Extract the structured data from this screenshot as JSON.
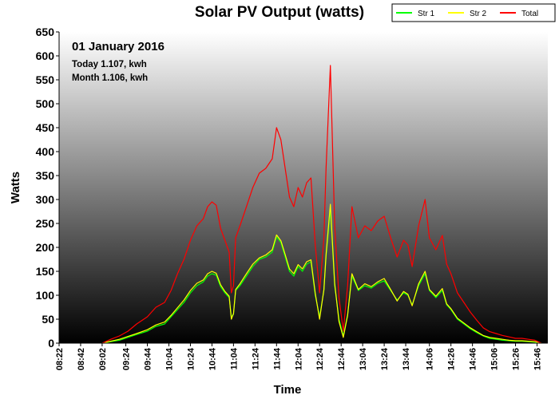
{
  "chart_data": {
    "type": "line",
    "title": "Solar PV Output (watts)",
    "xlabel": "Time",
    "ylabel": "Watts",
    "ylim": [
      0,
      650
    ],
    "yticks": [
      "0",
      "50",
      "100",
      "150",
      "200",
      "250",
      "300",
      "350",
      "400",
      "450",
      "500",
      "550",
      "600",
      "650"
    ],
    "xlim": [
      "08:22",
      "15:56"
    ],
    "xticks": [
      "08:22",
      "08:42",
      "09:02",
      "09:24",
      "09:44",
      "10:04",
      "10:24",
      "10:44",
      "11:04",
      "11:24",
      "11:44",
      "12:04",
      "12:24",
      "12:44",
      "13:04",
      "13:24",
      "13:44",
      "14:06",
      "14:26",
      "14:46",
      "15:06",
      "15:26",
      "15:46"
    ],
    "legend_position": "top-right",
    "grid": false,
    "background": "vertical gradient, white at top to black at bottom",
    "annotations": {
      "date": "01 January 2016",
      "today": "Today 1.107, kwh",
      "month": "Month 1.106, kwh"
    },
    "series": [
      {
        "name": "Str 1",
        "color": "#00ff00",
        "x": [
          "09:02",
          "09:10",
          "09:18",
          "09:26",
          "09:34",
          "09:44",
          "09:52",
          "10:00",
          "10:06",
          "10:12",
          "10:18",
          "10:24",
          "10:30",
          "10:36",
          "10:40",
          "10:44",
          "10:48",
          "10:52",
          "10:56",
          "11:00",
          "11:02",
          "11:04",
          "11:06",
          "11:10",
          "11:16",
          "11:22",
          "11:28",
          "11:34",
          "11:40",
          "11:44",
          "11:48",
          "11:52",
          "11:56",
          "12:00",
          "12:04",
          "12:08",
          "12:12",
          "12:16",
          "12:20",
          "12:24",
          "12:28",
          "12:30",
          "12:34",
          "12:38",
          "12:42",
          "12:46",
          "12:50",
          "12:54",
          "13:00",
          "13:06",
          "13:12",
          "13:18",
          "13:24",
          "13:30",
          "13:36",
          "13:42",
          "13:46",
          "13:50",
          "13:56",
          "14:02",
          "14:06",
          "14:12",
          "14:18",
          "14:22",
          "14:26",
          "14:32",
          "14:38",
          "14:44",
          "14:50",
          "14:56",
          "15:02",
          "15:08",
          "15:14",
          "15:20",
          "15:26",
          "15:32",
          "15:38",
          "15:44",
          "15:50"
        ],
        "values": [
          0,
          3,
          6,
          12,
          18,
          25,
          35,
          40,
          55,
          70,
          85,
          105,
          120,
          128,
          140,
          145,
          142,
          118,
          105,
          95,
          55,
          60,
          110,
          120,
          140,
          160,
          175,
          180,
          190,
          222,
          210,
          180,
          150,
          140,
          160,
          150,
          165,
          170,
          100,
          55,
          110,
          180,
          280,
          120,
          50,
          15,
          60,
          140,
          110,
          120,
          115,
          125,
          130,
          110,
          90,
          105,
          100,
          80,
          120,
          145,
          110,
          95,
          110,
          80,
          70,
          50,
          40,
          30,
          22,
          15,
          10,
          8,
          6,
          5,
          4,
          4,
          3,
          2,
          0
        ]
      },
      {
        "name": "Str 2",
        "color": "#ffff00",
        "x": [
          "09:02",
          "09:10",
          "09:18",
          "09:26",
          "09:34",
          "09:44",
          "09:52",
          "10:00",
          "10:06",
          "10:12",
          "10:18",
          "10:24",
          "10:30",
          "10:36",
          "10:40",
          "10:44",
          "10:48",
          "10:52",
          "10:56",
          "11:00",
          "11:02",
          "11:04",
          "11:06",
          "11:10",
          "11:16",
          "11:22",
          "11:28",
          "11:34",
          "11:40",
          "11:44",
          "11:48",
          "11:52",
          "11:56",
          "12:00",
          "12:04",
          "12:08",
          "12:12",
          "12:16",
          "12:20",
          "12:24",
          "12:28",
          "12:30",
          "12:34",
          "12:38",
          "12:42",
          "12:46",
          "12:50",
          "12:54",
          "13:00",
          "13:06",
          "13:12",
          "13:18",
          "13:24",
          "13:30",
          "13:36",
          "13:42",
          "13:46",
          "13:50",
          "13:56",
          "14:02",
          "14:06",
          "14:12",
          "14:18",
          "14:22",
          "14:26",
          "14:32",
          "14:38",
          "14:44",
          "14:50",
          "14:56",
          "15:02",
          "15:08",
          "15:14",
          "15:20",
          "15:26",
          "15:32",
          "15:38",
          "15:44",
          "15:50"
        ],
        "values": [
          0,
          4,
          8,
          14,
          20,
          28,
          38,
          44,
          58,
          74,
          90,
          110,
          125,
          132,
          145,
          150,
          146,
          122,
          108,
          98,
          50,
          62,
          112,
          124,
          145,
          165,
          178,
          184,
          195,
          226,
          214,
          185,
          155,
          145,
          164,
          155,
          170,
          174,
          104,
          50,
          112,
          185,
          290,
          125,
          45,
          12,
          58,
          145,
          112,
          124,
          118,
          128,
          135,
          112,
          88,
          108,
          102,
          78,
          124,
          150,
          112,
          98,
          114,
          82,
          72,
          52,
          42,
          32,
          24,
          16,
          12,
          10,
          8,
          6,
          5,
          5,
          4,
          3,
          0
        ]
      },
      {
        "name": "Total",
        "color": "#ff0000",
        "x": [
          "09:02",
          "09:10",
          "09:18",
          "09:26",
          "09:34",
          "09:44",
          "09:52",
          "10:00",
          "10:06",
          "10:12",
          "10:18",
          "10:24",
          "10:30",
          "10:36",
          "10:40",
          "10:44",
          "10:48",
          "10:52",
          "10:56",
          "11:00",
          "11:02",
          "11:04",
          "11:06",
          "11:10",
          "11:16",
          "11:22",
          "11:28",
          "11:34",
          "11:40",
          "11:44",
          "11:48",
          "11:52",
          "11:56",
          "12:00",
          "12:04",
          "12:08",
          "12:12",
          "12:16",
          "12:20",
          "12:24",
          "12:28",
          "12:30",
          "12:34",
          "12:38",
          "12:42",
          "12:46",
          "12:50",
          "12:54",
          "13:00",
          "13:06",
          "13:12",
          "13:18",
          "13:24",
          "13:30",
          "13:36",
          "13:42",
          "13:46",
          "13:50",
          "13:56",
          "14:02",
          "14:06",
          "14:12",
          "14:18",
          "14:22",
          "14:26",
          "14:32",
          "14:38",
          "14:44",
          "14:50",
          "14:56",
          "15:02",
          "15:08",
          "15:14",
          "15:20",
          "15:26",
          "15:32",
          "15:38",
          "15:44",
          "15:50"
        ],
        "values": [
          0,
          8,
          15,
          25,
          40,
          55,
          75,
          85,
          110,
          145,
          175,
          215,
          245,
          260,
          285,
          295,
          288,
          240,
          215,
          190,
          105,
          120,
          220,
          245,
          285,
          325,
          355,
          365,
          385,
          450,
          425,
          365,
          305,
          285,
          325,
          305,
          335,
          345,
          205,
          105,
          220,
          365,
          580,
          245,
          95,
          25,
          120,
          285,
          220,
          245,
          235,
          255,
          265,
          220,
          180,
          215,
          205,
          160,
          245,
          300,
          220,
          195,
          225,
          165,
          145,
          105,
          85,
          65,
          48,
          32,
          24,
          20,
          16,
          13,
          10,
          10,
          8,
          6,
          0
        ]
      }
    ]
  }
}
